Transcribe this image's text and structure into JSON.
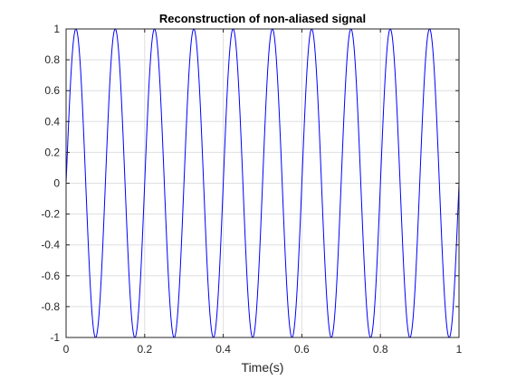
{
  "chart_data": {
    "type": "line",
    "title": "Reconstruction of non-aliased signal",
    "xlabel": "Time(s)",
    "ylabel": "",
    "xlim": [
      0,
      1
    ],
    "ylim": [
      -1,
      1
    ],
    "grid": true,
    "xticks": [
      0,
      0.2,
      0.4,
      0.6,
      0.8,
      1
    ],
    "xtick_labels": [
      "0",
      "0.2",
      "0.4",
      "0.6",
      "0.8",
      "1"
    ],
    "yticks": [
      -1,
      -0.8,
      -0.6,
      -0.4,
      -0.2,
      0,
      0.2,
      0.4,
      0.6,
      0.8,
      1
    ],
    "ytick_labels": [
      "-1",
      "-0.8",
      "-0.6",
      "-0.4",
      "-0.2",
      "0",
      "0.2",
      "0.4",
      "0.6",
      "0.8",
      "1"
    ],
    "series": [
      {
        "color": "#0000ff",
        "function": "sin(2*pi*10*t)",
        "frequency_hz": 10,
        "amplitude": 1,
        "t_range": [
          0,
          1
        ]
      }
    ]
  }
}
